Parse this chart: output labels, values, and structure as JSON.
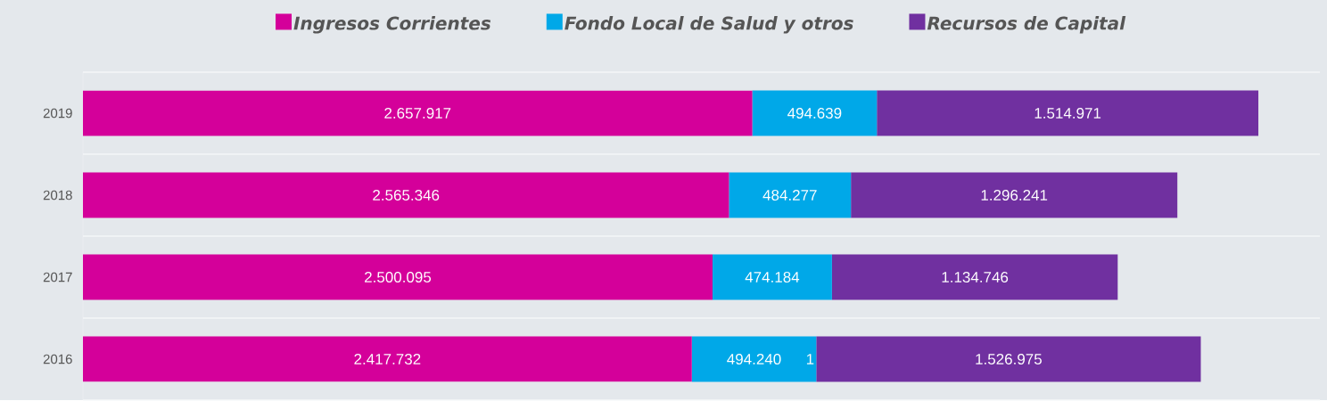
{
  "chart_data": {
    "type": "bar",
    "orientation": "horizontal",
    "stacked": true,
    "legend": "top",
    "grid": "y",
    "categories": [
      "2019",
      "2018",
      "2017",
      "2016"
    ],
    "series": [
      {
        "name": "Ingresos Corrientes",
        "color": "#d4009a",
        "values": [
          2657917,
          2565346,
          2500095,
          2417732
        ],
        "value_labels": [
          "2.657.917",
          "2.565.346",
          "2.500.095",
          "2.417.732"
        ]
      },
      {
        "name": "Fondo Local de Salud y otros",
        "color": "#00a8e8",
        "values": [
          494639,
          484277,
          474184,
          494240
        ],
        "value_labels": [
          "494.639",
          "484.277",
          "474.184",
          "494.240"
        ]
      },
      {
        "name": "Recursos de Capital",
        "color": "#7030a0",
        "values": [
          1514971,
          1296241,
          1134746,
          1526975
        ],
        "value_labels": [
          "1.514.971",
          "1.296.241",
          "1.134.746",
          "1.526.975"
        ]
      }
    ],
    "annotations": [
      {
        "text": "1",
        "x": 2911972,
        "y": "2016"
      }
    ]
  }
}
